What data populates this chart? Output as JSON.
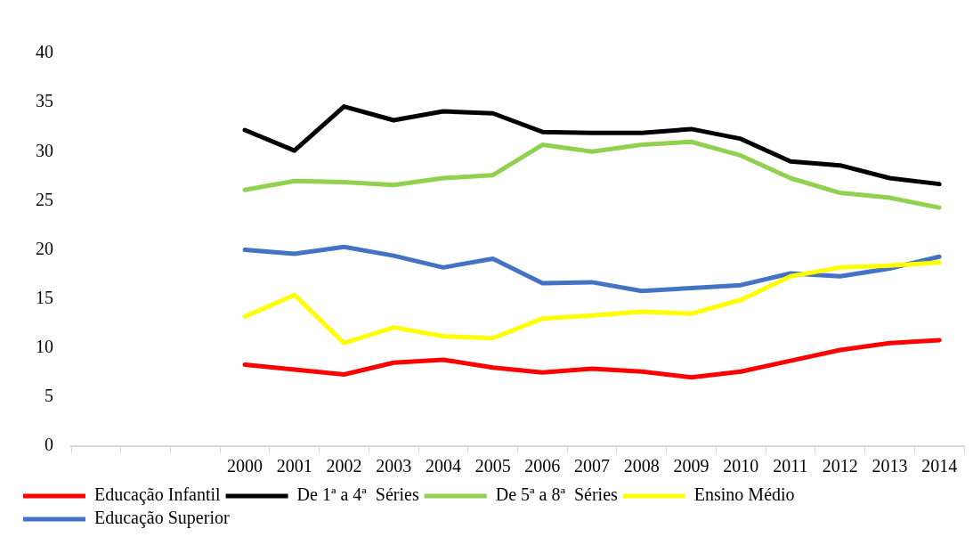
{
  "chart_data": {
    "type": "line",
    "categories": [
      null,
      null,
      null,
      "2000",
      "2001",
      "2002",
      "2003",
      "2004",
      "2005",
      "2006",
      "2007",
      "2008",
      "2009",
      "2010",
      "2011",
      "2012",
      "2013",
      "2014"
    ],
    "ylim": [
      0,
      40
    ],
    "yticks": [
      0,
      5,
      10,
      15,
      20,
      25,
      30,
      35,
      40
    ],
    "grid": false,
    "legend": "bottom",
    "marker": "none",
    "line_style": "solid",
    "series": [
      {
        "name": "Educação Infantil",
        "color": "#ff0000",
        "values": [
          null,
          null,
          null,
          8.3,
          7.8,
          7.3,
          8.5,
          8.8,
          8.0,
          7.5,
          7.9,
          7.6,
          7.0,
          7.6,
          8.7,
          9.8,
          10.5,
          10.8
        ]
      },
      {
        "name": "De 1ª a 4ª  Séries",
        "color": "#000000",
        "values": [
          null,
          null,
          null,
          32.2,
          30.1,
          34.6,
          33.2,
          34.1,
          33.9,
          32.0,
          31.9,
          31.9,
          32.3,
          31.3,
          29.0,
          28.6,
          27.3,
          26.7
        ]
      },
      {
        "name": "De 5ª a 8ª  Séries",
        "color": "#92d050",
        "values": [
          null,
          null,
          null,
          26.1,
          27.0,
          26.9,
          26.6,
          27.3,
          27.6,
          30.7,
          30.0,
          30.7,
          31.0,
          29.6,
          27.3,
          25.8,
          25.3,
          24.3
        ]
      },
      {
        "name": "Ensino Médio",
        "color": "#ffff00",
        "values": [
          null,
          null,
          null,
          13.2,
          15.4,
          10.5,
          12.1,
          11.2,
          11.0,
          13.0,
          13.3,
          13.7,
          13.5,
          14.9,
          17.3,
          18.2,
          18.4,
          18.7
        ]
      },
      {
        "name": "Educação Superior",
        "color": "#4472c4",
        "values": [
          null,
          null,
          null,
          20.0,
          19.6,
          20.3,
          19.4,
          18.2,
          19.1,
          16.6,
          16.7,
          15.8,
          16.1,
          16.4,
          17.6,
          17.3,
          18.1,
          19.3
        ]
      }
    ]
  }
}
